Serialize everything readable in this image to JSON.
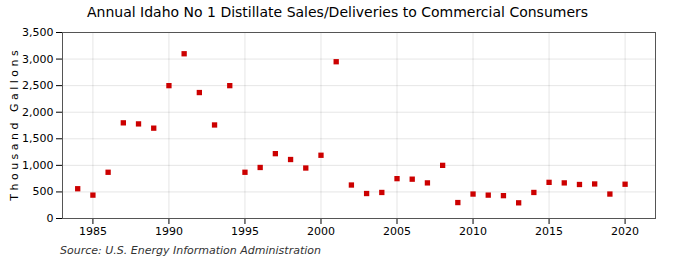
{
  "chart_data": {
    "type": "scatter",
    "title": "Annual Idaho No 1 Distillate Sales/Deliveries to Commercial Consumers",
    "ylabel": "T h o u s a n d   G a l l o n s",
    "source": "Source: U.S. Energy Information Administration",
    "x": [
      1984,
      1985,
      1986,
      1987,
      1988,
      1989,
      1990,
      1991,
      1992,
      1993,
      1994,
      1995,
      1996,
      1997,
      1998,
      1999,
      2000,
      2001,
      2002,
      2003,
      2004,
      2005,
      2006,
      2007,
      2008,
      2009,
      2010,
      2011,
      2012,
      2013,
      2014,
      2015,
      2016,
      2017,
      2018,
      2019,
      2020
    ],
    "values": [
      560,
      440,
      870,
      1800,
      1780,
      1700,
      2500,
      3100,
      2370,
      1760,
      2500,
      870,
      960,
      1220,
      1110,
      950,
      1190,
      2950,
      630,
      470,
      490,
      750,
      740,
      670,
      1000,
      300,
      460,
      440,
      430,
      295,
      490,
      680,
      670,
      640,
      650,
      460,
      645
    ],
    "color": "#cc0000",
    "marker": "square",
    "xlim": [
      1983,
      2022
    ],
    "xticks": [
      1985,
      1990,
      1995,
      2000,
      2005,
      2010,
      2015,
      2020
    ],
    "ylim": [
      0,
      3500
    ],
    "yticks": [
      0,
      500,
      {
        "value": 1000,
        "label": "1,000"
      },
      {
        "value": 1500,
        "label": "1,500"
      },
      {
        "value": 2000,
        "label": "2,000"
      },
      {
        "value": 2500,
        "label": "2,500"
      },
      {
        "value": 3000,
        "label": "3,000"
      },
      {
        "value": 3500,
        "label": "3,500"
      }
    ],
    "grid": true
  }
}
